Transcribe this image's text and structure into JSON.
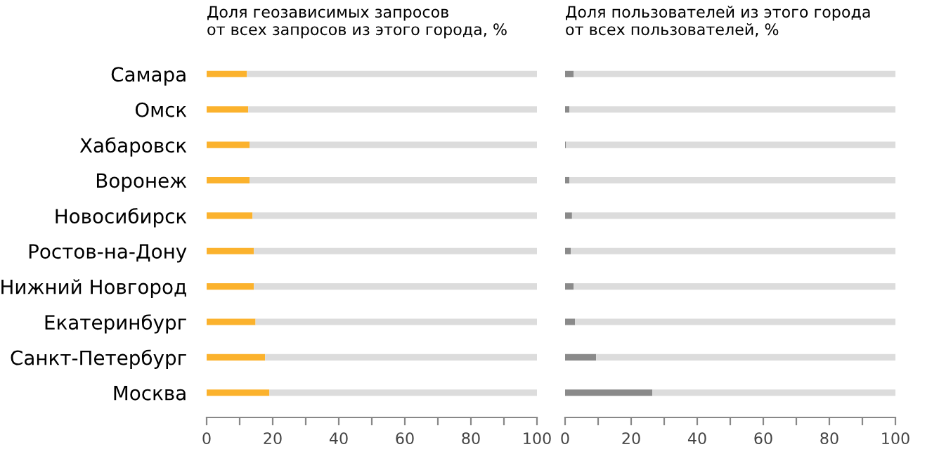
{
  "chart_data": [
    {
      "type": "bar",
      "orientation": "horizontal",
      "stacked": true,
      "title": "Доля геозависимых запросов\nот всех запросов из этого города, %",
      "categories": [
        "Самара",
        "Омск",
        "Хабаровск",
        "Воронеж",
        "Новосибирск",
        "Ростов-на-Дону",
        "Нижний Новгород",
        "Екатеринбург",
        "Санкт-Петербург",
        "Москва"
      ],
      "series": [
        {
          "color": "#fbb22d",
          "values": [
            12.2,
            12.6,
            13.0,
            13.0,
            13.9,
            14.3,
            14.3,
            14.8,
            17.7,
            19.0
          ]
        },
        {
          "color": "#dcdcdc",
          "values": [
            87.8,
            87.4,
            87.0,
            87.0,
            86.1,
            85.7,
            85.7,
            85.2,
            82.3,
            81.0
          ]
        }
      ],
      "xlim": [
        0,
        100
      ],
      "xticks": [
        0,
        {
          "value": 10,
          "label": null
        },
        20,
        {
          "value": 30,
          "label": null
        },
        40,
        {
          "value": 50,
          "label": null
        },
        60,
        {
          "value": 70,
          "label": null
        },
        80,
        {
          "value": 90,
          "label": null
        },
        100
      ],
      "grid": false,
      "legend": false
    },
    {
      "type": "bar",
      "orientation": "horizontal",
      "stacked": true,
      "title": "Доля пользователей из этого города\nот всех пользователей, %",
      "categories": [
        null,
        null,
        null,
        null,
        null,
        null,
        null,
        null,
        null,
        null
      ],
      "series": [
        {
          "color": "#8a8a8a",
          "values": [
            2.6,
            1.3,
            0.3,
            1.3,
            2.1,
            1.7,
            2.6,
            3.0,
            9.4,
            26.4
          ]
        },
        {
          "color": "#dcdcdc",
          "values": [
            97.4,
            98.7,
            99.7,
            98.7,
            97.9,
            98.3,
            97.4,
            97.0,
            90.6,
            73.6
          ]
        }
      ],
      "xlim": [
        0,
        100
      ],
      "xticks": [
        0,
        {
          "value": 10,
          "label": null
        },
        20,
        {
          "value": 30,
          "label": null
        },
        40,
        {
          "value": 50,
          "label": null
        },
        60,
        {
          "value": 70,
          "label": null
        },
        80,
        {
          "value": 90,
          "label": null
        },
        100
      ],
      "grid": false,
      "legend": false,
      "tick_labels": "x"
    }
  ]
}
